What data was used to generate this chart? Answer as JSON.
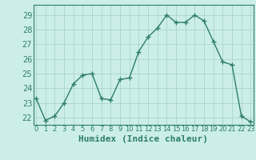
{
  "x": [
    0,
    1,
    2,
    3,
    4,
    5,
    6,
    7,
    8,
    9,
    10,
    11,
    12,
    13,
    14,
    15,
    16,
    17,
    18,
    19,
    20,
    21,
    22,
    23
  ],
  "y": [
    23.3,
    21.8,
    22.1,
    23.0,
    24.3,
    24.9,
    25.0,
    23.3,
    23.2,
    24.6,
    24.7,
    26.5,
    27.5,
    28.1,
    29.0,
    28.5,
    28.5,
    29.0,
    28.6,
    27.2,
    25.8,
    25.6,
    22.1,
    21.7
  ],
  "line_color": "#2d7d6e",
  "bg_color": "#cceee8",
  "grid_color": "#aad4cc",
  "xlabel": "Humidex (Indice chaleur)",
  "ylim": [
    21.5,
    29.7
  ],
  "xlim": [
    -0.3,
    23.3
  ],
  "yticks": [
    22,
    23,
    24,
    25,
    26,
    27,
    28,
    29
  ],
  "xticks": [
    0,
    1,
    2,
    3,
    4,
    5,
    6,
    7,
    8,
    9,
    10,
    11,
    12,
    13,
    14,
    15,
    16,
    17,
    18,
    19,
    20,
    21,
    22,
    23
  ],
  "marker": "+",
  "marker_size": 4,
  "linewidth": 1.0,
  "xlabel_fontsize": 8,
  "ytick_fontsize": 7,
  "xtick_fontsize": 6,
  "tick_color": "#2d7d6e",
  "label_color": "#2d7d6e",
  "spine_color": "#2d7d6e"
}
